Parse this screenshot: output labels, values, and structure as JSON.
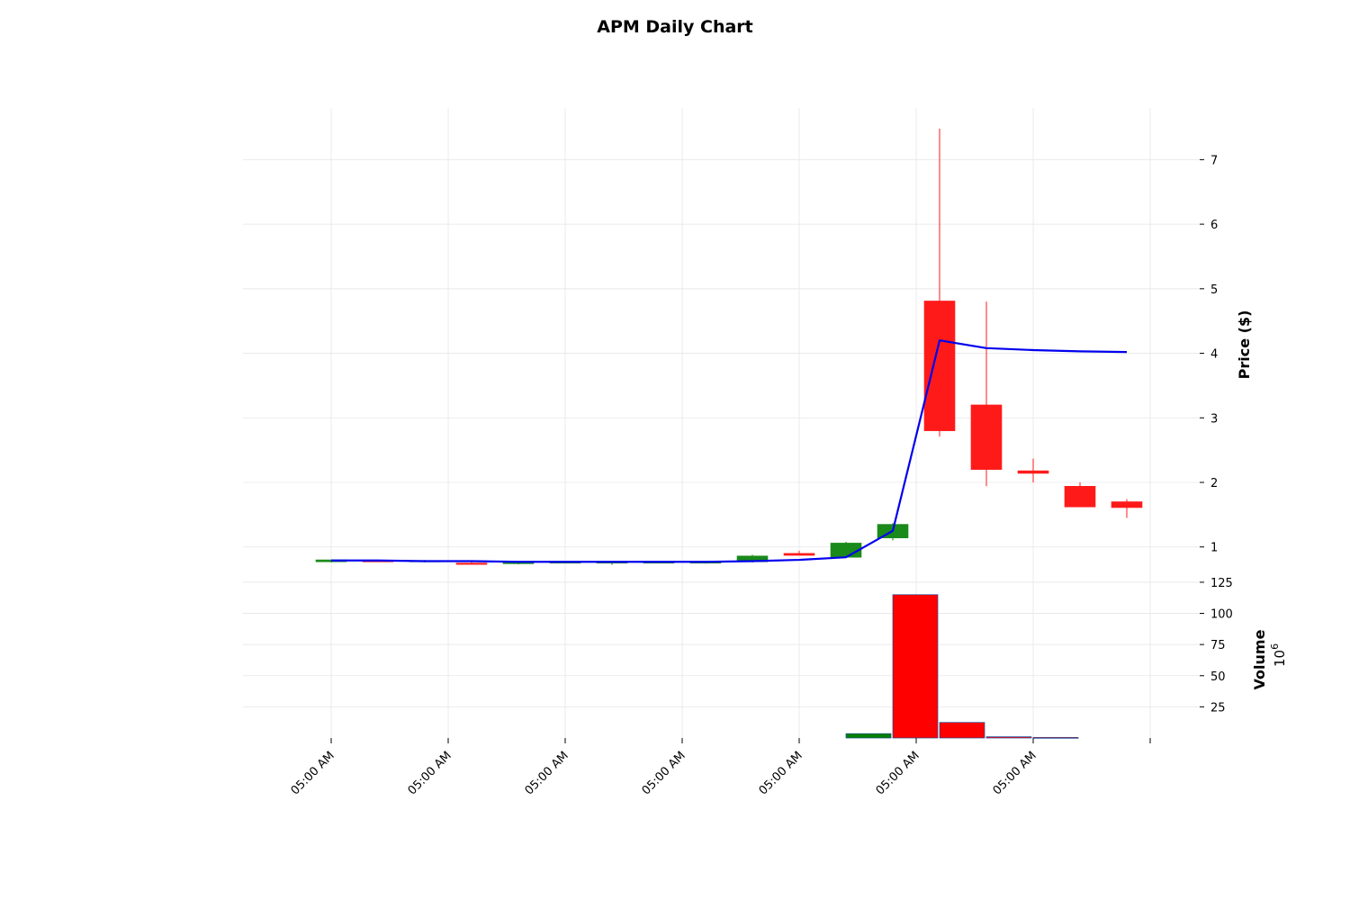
{
  "chart_data": {
    "type": "candlestick",
    "title": "APM Daily Chart",
    "x_tick_labels": [
      "05:00 AM",
      "05:00 AM",
      "05:00 AM",
      "05:00 AM",
      "05:00 AM",
      "05:00 AM",
      "05:00 AM"
    ],
    "price_panel": {
      "ylabel": "Price ($)",
      "ylim": [
        0.55,
        7.8
      ],
      "yticks": [
        1,
        2,
        3,
        4,
        5,
        6,
        7
      ],
      "grid": true,
      "candles": [
        {
          "open": 0.77,
          "high": 0.8,
          "low": 0.76,
          "close": 0.8
        },
        {
          "open": 0.79,
          "high": 0.79,
          "low": 0.77,
          "close": 0.78
        },
        {
          "open": 0.77,
          "high": 0.8,
          "low": 0.76,
          "close": 0.79
        },
        {
          "open": 0.75,
          "high": 0.77,
          "low": 0.73,
          "close": 0.74
        },
        {
          "open": 0.74,
          "high": 0.78,
          "low": 0.73,
          "close": 0.77
        },
        {
          "open": 0.77,
          "high": 0.78,
          "low": 0.76,
          "close": 0.77
        },
        {
          "open": 0.75,
          "high": 0.78,
          "low": 0.72,
          "close": 0.77
        },
        {
          "open": 0.76,
          "high": 0.78,
          "low": 0.75,
          "close": 0.77
        },
        {
          "open": 0.75,
          "high": 0.78,
          "low": 0.74,
          "close": 0.77
        },
        {
          "open": 0.77,
          "high": 0.88,
          "low": 0.76,
          "close": 0.86
        },
        {
          "open": 0.9,
          "high": 0.94,
          "low": 0.87,
          "close": 0.87
        },
        {
          "open": 0.84,
          "high": 1.08,
          "low": 0.83,
          "close": 1.06
        },
        {
          "open": 1.14,
          "high": 1.37,
          "low": 1.1,
          "close": 1.35
        },
        {
          "open": 4.81,
          "high": 7.48,
          "low": 2.71,
          "close": 2.8
        },
        {
          "open": 3.2,
          "high": 4.8,
          "low": 1.94,
          "close": 2.2
        },
        {
          "open": 2.18,
          "high": 2.37,
          "low": 2.0,
          "close": 2.14
        },
        {
          "open": 1.94,
          "high": 2.0,
          "low": 1.62,
          "close": 1.62
        },
        {
          "open": 1.7,
          "high": 1.74,
          "low": 1.45,
          "close": 1.61
        }
      ],
      "up_color": "#1a8a1a",
      "down_color": "#ff1a1a",
      "moving_average": {
        "color": "#0000ee",
        "values": [
          0.79,
          0.79,
          0.78,
          0.78,
          0.77,
          0.77,
          0.77,
          0.77,
          0.77,
          0.78,
          0.8,
          0.84,
          1.25,
          4.2,
          4.08,
          4.05,
          4.03,
          4.02
        ],
        "start_index": 0
      }
    },
    "volume_panel": {
      "ylabel": "Volume",
      "multiplier_label": "10",
      "multiplier_exponent": "6",
      "ylim": [
        0,
        130
      ],
      "yticks": [
        25,
        50,
        75,
        100,
        125
      ],
      "grid": true,
      "bars": [
        {
          "index": 11.5,
          "value": 3.5,
          "color": "#008000"
        },
        {
          "index": 12.5,
          "value": 115,
          "color": "#ff0000"
        },
        {
          "index": 13.5,
          "value": 12.5,
          "color": "#ff0000"
        },
        {
          "index": 14.5,
          "value": 1.0,
          "color": "#ff0000"
        },
        {
          "index": 15.5,
          "value": 0.5,
          "color": "#ff0000"
        }
      ]
    }
  }
}
